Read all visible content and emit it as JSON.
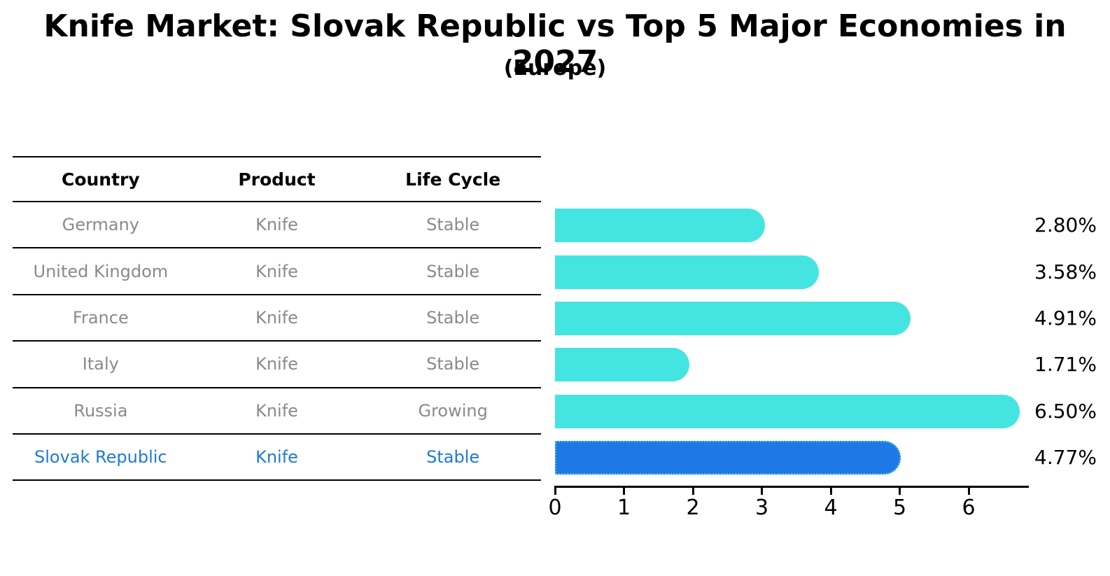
{
  "header": {
    "title": "Knife Market: Slovak Republic vs Top 5 Major Economies in 2027",
    "subtitle": "(Europe)"
  },
  "table": {
    "columns": [
      "Country",
      "Product",
      "Life Cycle"
    ],
    "rows": [
      {
        "country": "Germany",
        "product": "Knife",
        "life_cycle": "Stable",
        "highlight": false
      },
      {
        "country": "United Kingdom",
        "product": "Knife",
        "life_cycle": "Stable",
        "highlight": false
      },
      {
        "country": "France",
        "product": "Knife",
        "life_cycle": "Stable",
        "highlight": false
      },
      {
        "country": "Italy",
        "product": "Knife",
        "life_cycle": "Stable",
        "highlight": false
      },
      {
        "country": "Russia",
        "product": "Knife",
        "life_cycle": "Growing",
        "highlight": false
      },
      {
        "country": "Slovak Republic",
        "product": "Knife",
        "life_cycle": "Stable",
        "highlight": true
      }
    ]
  },
  "chart_data": {
    "type": "bar",
    "orientation": "horizontal",
    "title": "Knife Market: Slovak Republic vs Top 5 Major Economies in 2027",
    "subtitle": "(Europe)",
    "categories": [
      "Germany",
      "United Kingdom",
      "France",
      "Italy",
      "Russia",
      "Slovak Republic"
    ],
    "values": [
      2.8,
      3.58,
      4.91,
      1.71,
      6.5,
      4.77
    ],
    "value_labels": [
      "2.80%",
      "3.58%",
      "4.91%",
      "1.71%",
      "6.50%",
      "4.77%"
    ],
    "x_ticks": [
      "0",
      "1",
      "2",
      "3",
      "4",
      "5",
      "6"
    ],
    "xlim": [
      0,
      6.87
    ],
    "grid": false,
    "legend": "none",
    "bar_color": "#44e5e0",
    "highlight_color": "#1e78e6",
    "highlight_index": 5
  },
  "colors": {
    "bar_cyan": "#44e5e0",
    "bar_blue": "#1e78e6",
    "highlight_text_blue": "#1e7ad4",
    "table_text_gray": "#8a8a8a",
    "axis_black": "#000000",
    "background": "#ffffff"
  }
}
